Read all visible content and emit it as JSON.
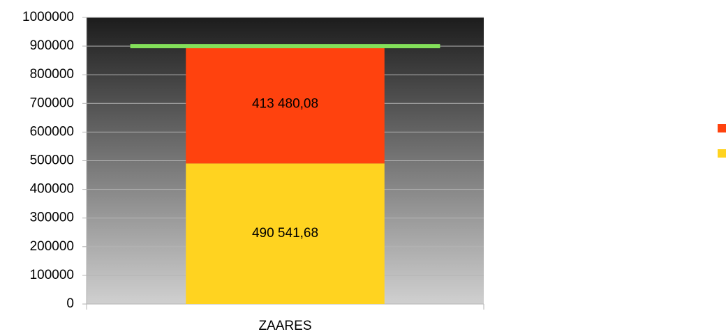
{
  "chart_data": {
    "type": "bar",
    "stacked": true,
    "categories": [
      "ZAARES"
    ],
    "series": [
      {
        "color": "#ffd320",
        "values": [
          490541.68
        ],
        "value_labels": [
          "490 541,68"
        ]
      },
      {
        "color": "#ff420e",
        "values": [
          413480.08
        ],
        "value_labels": [
          "413 480,08"
        ]
      },
      {
        "type": "line",
        "color": "#83e05a",
        "values": [
          900000
        ]
      }
    ],
    "ylim": [
      0,
      1000000
    ],
    "yticks": [
      0,
      100000,
      200000,
      300000,
      400000,
      500000,
      600000,
      700000,
      800000,
      900000,
      1000000
    ],
    "grid": true
  }
}
